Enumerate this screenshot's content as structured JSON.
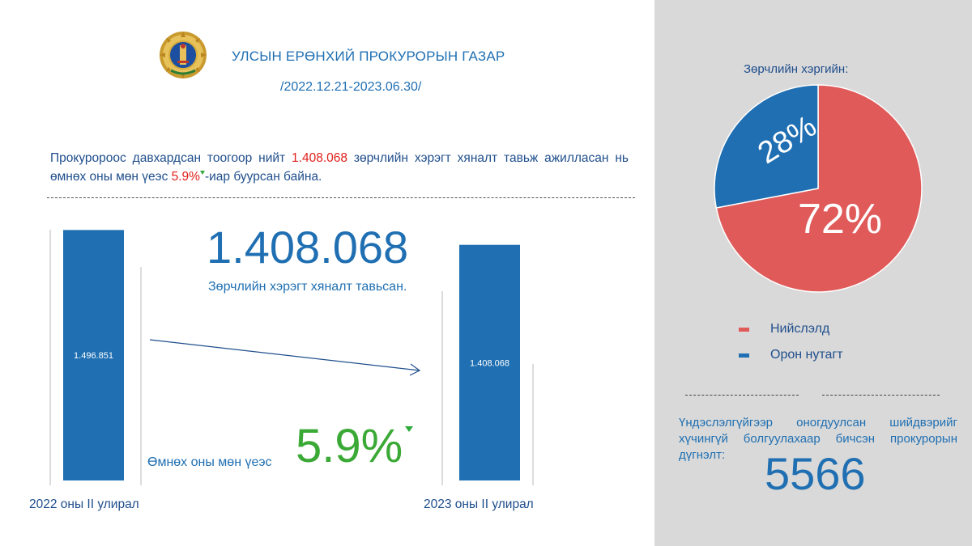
{
  "header": {
    "org_title": "УЛСЫН ЕРӨНХИЙ ПРОКУРОРЫН ГАЗАР",
    "period": "/2022.12.21-2023.06.30/"
  },
  "summary": {
    "part1": "Прокуророос давхардсан тоогоор нийт ",
    "highlight_count": "1.408.068",
    "part2": " зөрчлийн хэрэгт хяналт тавьж ажилласан нь өмнөх оны мөн үеэс ",
    "highlight_pct": "5.9%",
    "part3": "-иар буурсан байна."
  },
  "headline": {
    "big_number": "1.408.068",
    "caption": "Зөрчлийн хэрэгт хяналт тавьсан.",
    "change_label": "Өмнөх оны мөн үеэс",
    "change_value": "5.9%"
  },
  "note": {
    "text": "Үндэслэлгүйгээр оногдуулсан шийдвэрийг хүчингүй болгуулахаар бичсэн прокурорын дүгнэлт:",
    "number": "5566"
  },
  "colors": {
    "bar": "#1f6fb2",
    "capital": "#e05a5a",
    "local": "#1f6fb2",
    "accent_red": "#e0201b",
    "accent_green": "#3aa935"
  },
  "icons": {
    "emblem": "state-emblem-icon",
    "trend": "trend-arrow-icon",
    "decrease": "down-triangle-icon"
  },
  "chart_data": [
    {
      "type": "bar",
      "categories": [
        "2022 оны II улирал",
        "2023 оны II улирал"
      ],
      "values": [
        1496851,
        1408068
      ],
      "value_labels": [
        "1.496.851",
        "1.408.068"
      ],
      "ylim": [
        0,
        1600000
      ]
    },
    {
      "type": "pie",
      "title": "Зөрчлийн хэргийн:",
      "labels": [
        "Нийслэлд",
        "Орон нутагт"
      ],
      "values": [
        72,
        28
      ],
      "value_labels": [
        "72%",
        "28%"
      ],
      "legend": "bottom"
    }
  ]
}
